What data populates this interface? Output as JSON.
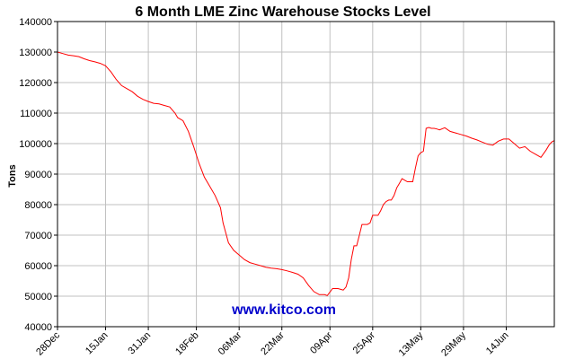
{
  "chart_data": {
    "type": "line",
    "title": "6 Month LME Zinc Warehouse Stocks Level",
    "ylabel": "Tons",
    "xlabel": "",
    "ylim": [
      40000,
      140000
    ],
    "yticks": [
      40000,
      50000,
      60000,
      70000,
      80000,
      90000,
      100000,
      110000,
      120000,
      130000,
      140000
    ],
    "xlim": [
      0,
      186
    ],
    "xticks": [
      {
        "label": "28Dec",
        "x": 0
      },
      {
        "label": "15Jan",
        "x": 18
      },
      {
        "label": "31Jan",
        "x": 34
      },
      {
        "label": "18Feb",
        "x": 52
      },
      {
        "label": "06Mar",
        "x": 68
      },
      {
        "label": "22Mar",
        "x": 84
      },
      {
        "label": "09Apr",
        "x": 102
      },
      {
        "label": "25Apr",
        "x": 118
      },
      {
        "label": "13May",
        "x": 136
      },
      {
        "label": "29May",
        "x": 152
      },
      {
        "label": "14Jun",
        "x": 168
      }
    ],
    "grid": true,
    "line_color": "#ff0000",
    "series": [
      {
        "x": [
          0,
          2,
          4,
          6,
          8,
          10,
          12,
          14,
          16,
          18,
          20,
          22,
          24,
          26,
          28,
          30,
          32,
          34,
          36,
          38,
          40,
          42,
          44,
          45,
          47,
          49,
          51,
          53,
          55,
          57,
          59,
          61,
          62,
          64,
          66,
          68,
          70,
          72,
          74,
          76,
          78,
          80,
          82,
          84,
          86,
          88,
          90,
          92,
          94,
          96,
          98,
          100,
          101,
          103,
          105,
          107,
          108,
          109,
          110,
          111,
          112,
          113,
          114,
          115,
          116,
          117,
          118,
          119,
          120,
          121,
          122,
          123,
          124,
          125,
          126,
          127,
          128,
          129,
          130,
          131,
          132,
          133,
          134,
          135,
          136,
          137,
          138,
          139,
          140,
          141,
          142,
          143,
          145,
          147,
          149,
          151,
          153,
          155,
          157,
          159,
          161,
          163,
          165,
          167,
          169,
          171,
          173,
          175,
          177,
          179,
          181,
          183,
          184,
          185,
          186
        ],
        "y": [
          130000,
          129500,
          129000,
          128800,
          128500,
          127800,
          127200,
          126800,
          126300,
          125500,
          123500,
          121000,
          119000,
          118000,
          117000,
          115500,
          114500,
          113800,
          113200,
          113000,
          112500,
          112000,
          110000,
          108500,
          107500,
          104000,
          99000,
          93500,
          89000,
          86000,
          83000,
          79000,
          74000,
          67500,
          65000,
          63500,
          62000,
          61000,
          60500,
          60000,
          59500,
          59200,
          59000,
          58700,
          58300,
          57800,
          57200,
          56000,
          53500,
          51500,
          50500,
          50500,
          50200,
          52500,
          52500,
          52000,
          53000,
          56000,
          62000,
          66500,
          66500,
          70000,
          73500,
          73500,
          73500,
          74000,
          76500,
          76500,
          76500,
          78000,
          80000,
          81000,
          81500,
          81500,
          83000,
          85500,
          87000,
          88500,
          88000,
          87500,
          87500,
          87500,
          92000,
          96000,
          97000,
          97500,
          105000,
          105300,
          105000,
          105000,
          104800,
          104500,
          105200,
          104000,
          103500,
          103000,
          102500,
          101800,
          101200,
          100500,
          99800,
          99500,
          100800,
          101500,
          101500,
          100000,
          98500,
          99000,
          97500,
          96500,
          95500,
          98000,
          99500,
          100500,
          101000
        ]
      }
    ]
  },
  "watermark": {
    "text": "www.kitco.com",
    "color": "#0000cc"
  }
}
